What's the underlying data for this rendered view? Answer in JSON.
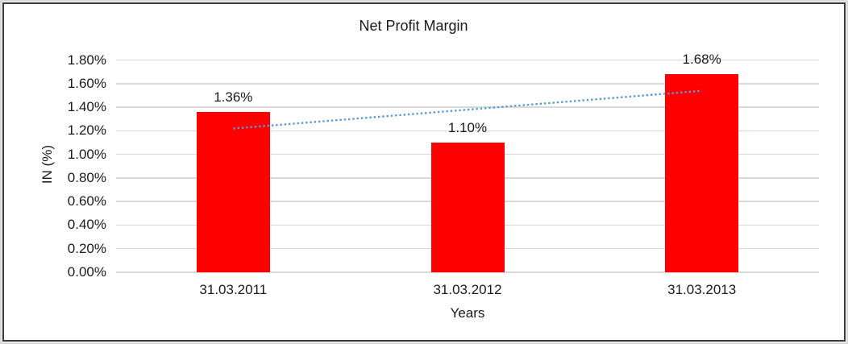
{
  "chart_data": {
    "type": "bar",
    "title": "Net Profit Margin",
    "xlabel": "Years",
    "ylabel": "IN (%)",
    "categories": [
      "31.03.2011",
      "31.03.2012",
      "31.03.2013"
    ],
    "values": [
      1.36,
      1.1,
      1.68
    ],
    "data_labels": [
      "1.36%",
      "1.10%",
      "1.68%"
    ],
    "ylim": [
      0,
      1.8
    ],
    "ytick_step": 0.2,
    "ytick_labels": [
      "0.00%",
      "0.20%",
      "0.40%",
      "0.60%",
      "0.80%",
      "1.00%",
      "1.20%",
      "1.40%",
      "1.60%",
      "1.80%"
    ],
    "grid": true,
    "legend": "none",
    "trendline": {
      "type": "linear",
      "style": "dotted",
      "start_value": 1.22,
      "end_value": 1.54
    },
    "colors": {
      "bar": "#ff0000",
      "trendline": "#5b9bd5",
      "gridline": "#d9d9d9",
      "text": "#1a1a1a"
    }
  }
}
